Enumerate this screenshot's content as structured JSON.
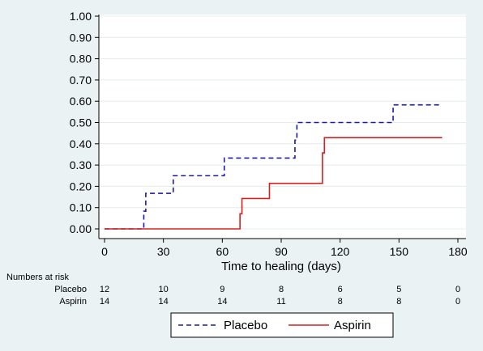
{
  "chart_data": {
    "type": "line",
    "title": "",
    "xlabel": "Time to healing (days)",
    "ylabel": "",
    "xlim": [
      0,
      180
    ],
    "ylim": [
      0,
      1
    ],
    "x_ticks": [
      "0",
      "30",
      "60",
      "90",
      "120",
      "150",
      "180"
    ],
    "y_ticks": [
      "0.00",
      "0.10",
      "0.20",
      "0.30",
      "0.40",
      "0.50",
      "0.60",
      "0.70",
      "0.80",
      "0.90",
      "1.00"
    ],
    "grid": true,
    "legend_position": "bottom",
    "series": [
      {
        "name": "Placebo",
        "color": "#1a1aa8",
        "dash": "dashed",
        "x": [
          0,
          20,
          21,
          35,
          61,
          97,
          98,
          147,
          172
        ],
        "y": [
          0,
          0.083,
          0.167,
          0.25,
          0.333,
          0.417,
          0.5,
          0.583,
          0.583
        ]
      },
      {
        "name": "Aspirin",
        "color": "#d62020",
        "dash": "solid",
        "x": [
          0,
          69,
          70,
          84,
          111,
          112,
          172
        ],
        "y": [
          0,
          0.071,
          0.143,
          0.214,
          0.357,
          0.429,
          0.429
        ]
      }
    ],
    "risk_table": {
      "title": "Numbers at risk",
      "times": [
        0,
        30,
        60,
        90,
        120,
        150,
        180
      ],
      "rows": [
        {
          "label": "Placebo",
          "values": [
            "12",
            "10",
            "9",
            "8",
            "6",
            "5",
            "0"
          ]
        },
        {
          "label": "Aspirin",
          "values": [
            "14",
            "14",
            "14",
            "11",
            "8",
            "8",
            "0"
          ]
        }
      ]
    }
  }
}
